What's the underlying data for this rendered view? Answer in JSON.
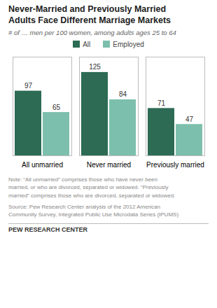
{
  "chart_data": {
    "type": "bar",
    "title": "Never-Married and Previously Married\nAdults Face Different Marriage Markets",
    "subtitle": "# of … men per 100 women, among adults ages 25 to 64",
    "categories": [
      "All unmarried",
      "Never married",
      "Previously married"
    ],
    "series": [
      {
        "name": "All",
        "color": "#2d6b55",
        "values": [
          97,
          125,
          71
        ]
      },
      {
        "name": "Employed",
        "color": "#7dbfad",
        "values": [
          65,
          84,
          47
        ]
      }
    ],
    "ylim": [
      0,
      148
    ],
    "yticks": [],
    "tick_labels": "x",
    "grid": false,
    "legend": "top",
    "data_labels": true,
    "annotations": [
      "Note: “All unmarried” comprises those who have never been\nmarried, or who are divorced, separated or widowed. “Previously\nmarried” comprises those who are divorced, separated or widowed.",
      "Source: Pew Research Center analysis of the 2012 American\nCommunity Survey, Integrated Public Use Microdata Series (IPUMS)",
      "PEW RESEARCH CENTER"
    ]
  }
}
